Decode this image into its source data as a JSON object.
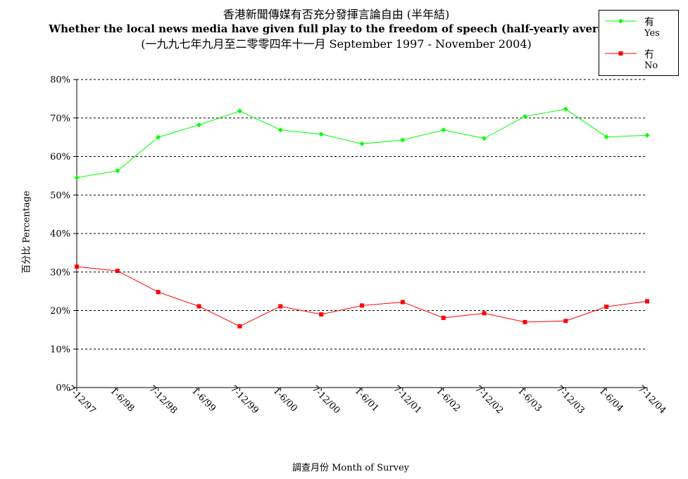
{
  "chart_data": {
    "type": "line",
    "title_zh": "香港新聞傳媒有否充分發揮言論自由 (半年結)",
    "title_en": "Whether the local news media have given full play to the freedom of speech (half-yearly average)",
    "subtitle": "(一九九七年九月至二零零四年十一月 September 1997 - November 2004)",
    "xlabel": "調查月份 Month of Survey",
    "ylabel": "百分比 Percentage",
    "ylim": [
      0,
      80
    ],
    "yticks": [
      "0%",
      "10%",
      "20%",
      "30%",
      "40%",
      "50%",
      "60%",
      "70%",
      "80%"
    ],
    "grid": "horizontal dashed",
    "legend_position": "top-right",
    "categories": [
      "7-12/97",
      "1-6/98",
      "7-12/98",
      "1-6/99",
      "7-12/99",
      "1-6/00",
      "7-12/00",
      "1-6/01",
      "7-12/01",
      "1-6/02",
      "7-12/02",
      "1-6/03",
      "7-12/03",
      "1-6/04",
      "7-12/04"
    ],
    "series": [
      {
        "name_zh": "有",
        "name_en": "Yes",
        "color": "#00ff00",
        "marker": "diamond",
        "values": [
          54.5,
          56.3,
          65.0,
          68.2,
          71.8,
          66.9,
          65.8,
          63.3,
          64.3,
          66.9,
          64.7,
          70.4,
          72.3,
          65.1,
          65.5
        ]
      },
      {
        "name_zh": "冇",
        "name_en": "No",
        "color": "#ff0000",
        "marker": "square",
        "values": [
          31.4,
          30.3,
          24.8,
          21.1,
          15.9,
          21.1,
          19.0,
          21.3,
          22.2,
          18.1,
          19.3,
          17.0,
          17.3,
          21.0,
          22.4
        ]
      }
    ]
  }
}
